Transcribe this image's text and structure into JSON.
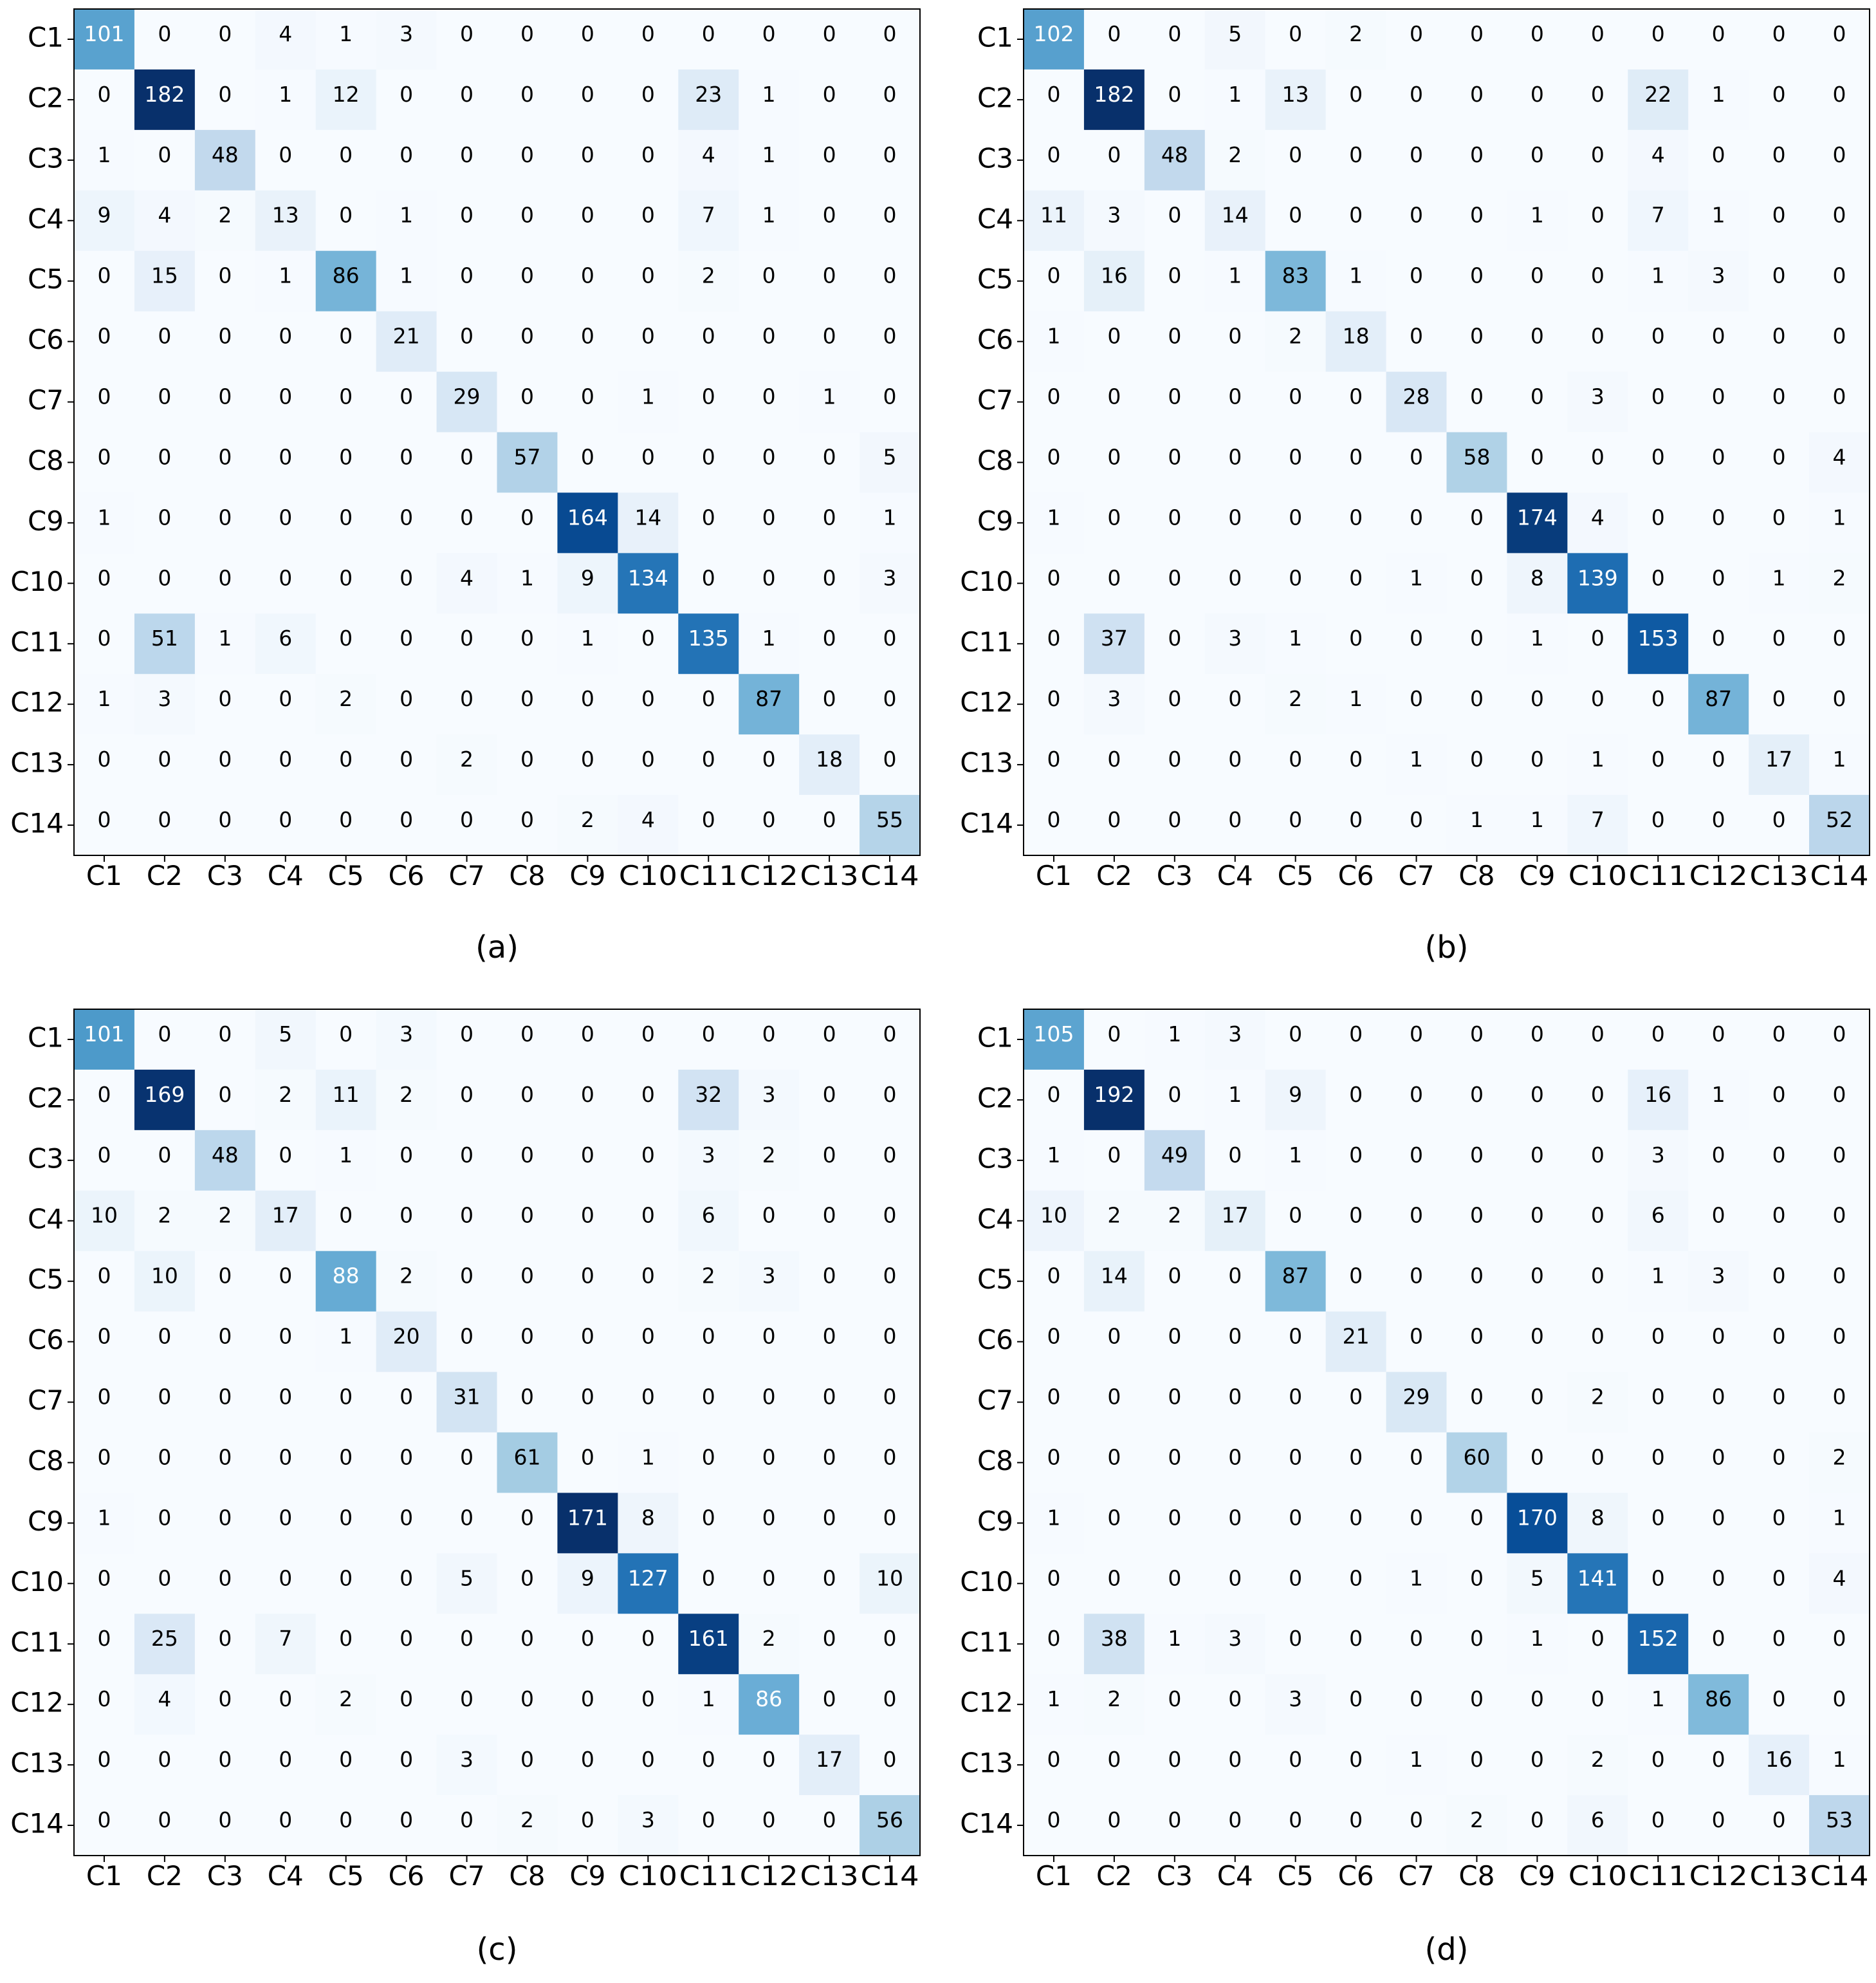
{
  "chart_data": [
    {
      "type": "heatmap",
      "panel_label": "(a)",
      "colormap": "Blues",
      "categories": [
        "C1",
        "C2",
        "C3",
        "C4",
        "C5",
        "C6",
        "C7",
        "C8",
        "C9",
        "C10",
        "C11",
        "C12",
        "C13",
        "C14"
      ],
      "matrix": [
        [
          101,
          0,
          0,
          4,
          1,
          3,
          0,
          0,
          0,
          0,
          0,
          0,
          0,
          0
        ],
        [
          0,
          182,
          0,
          1,
          12,
          0,
          0,
          0,
          0,
          0,
          23,
          1,
          0,
          0
        ],
        [
          1,
          0,
          48,
          0,
          0,
          0,
          0,
          0,
          0,
          0,
          4,
          1,
          0,
          0
        ],
        [
          9,
          4,
          2,
          13,
          0,
          1,
          0,
          0,
          0,
          0,
          7,
          1,
          0,
          0
        ],
        [
          0,
          15,
          0,
          1,
          86,
          1,
          0,
          0,
          0,
          0,
          2,
          0,
          0,
          0
        ],
        [
          0,
          0,
          0,
          0,
          0,
          21,
          0,
          0,
          0,
          0,
          0,
          0,
          0,
          0
        ],
        [
          0,
          0,
          0,
          0,
          0,
          0,
          29,
          0,
          0,
          1,
          0,
          0,
          1,
          0
        ],
        [
          0,
          0,
          0,
          0,
          0,
          0,
          0,
          57,
          0,
          0,
          0,
          0,
          0,
          5
        ],
        [
          1,
          0,
          0,
          0,
          0,
          0,
          0,
          0,
          164,
          14,
          0,
          0,
          0,
          1
        ],
        [
          0,
          0,
          0,
          0,
          0,
          0,
          4,
          1,
          9,
          134,
          0,
          0,
          0,
          3
        ],
        [
          0,
          51,
          1,
          6,
          0,
          0,
          0,
          0,
          1,
          0,
          135,
          1,
          0,
          0
        ],
        [
          1,
          3,
          0,
          0,
          2,
          0,
          0,
          0,
          0,
          0,
          0,
          87,
          0,
          0
        ],
        [
          0,
          0,
          0,
          0,
          0,
          0,
          2,
          0,
          0,
          0,
          0,
          0,
          18,
          0
        ],
        [
          0,
          0,
          0,
          0,
          0,
          0,
          0,
          0,
          2,
          4,
          0,
          0,
          0,
          55
        ]
      ]
    },
    {
      "type": "heatmap",
      "panel_label": "(b)",
      "colormap": "Blues",
      "categories": [
        "C1",
        "C2",
        "C3",
        "C4",
        "C5",
        "C6",
        "C7",
        "C8",
        "C9",
        "C10",
        "C11",
        "C12",
        "C13",
        "C14"
      ],
      "matrix": [
        [
          102,
          0,
          0,
          5,
          0,
          2,
          0,
          0,
          0,
          0,
          0,
          0,
          0,
          0
        ],
        [
          0,
          182,
          0,
          1,
          13,
          0,
          0,
          0,
          0,
          0,
          22,
          1,
          0,
          0
        ],
        [
          0,
          0,
          48,
          2,
          0,
          0,
          0,
          0,
          0,
          0,
          4,
          0,
          0,
          0
        ],
        [
          11,
          3,
          0,
          14,
          0,
          0,
          0,
          0,
          1,
          0,
          7,
          1,
          0,
          0
        ],
        [
          0,
          16,
          0,
          1,
          83,
          1,
          0,
          0,
          0,
          0,
          1,
          3,
          0,
          0
        ],
        [
          1,
          0,
          0,
          0,
          2,
          18,
          0,
          0,
          0,
          0,
          0,
          0,
          0,
          0
        ],
        [
          0,
          0,
          0,
          0,
          0,
          0,
          28,
          0,
          0,
          3,
          0,
          0,
          0,
          0
        ],
        [
          0,
          0,
          0,
          0,
          0,
          0,
          0,
          58,
          0,
          0,
          0,
          0,
          0,
          4
        ],
        [
          1,
          0,
          0,
          0,
          0,
          0,
          0,
          0,
          174,
          4,
          0,
          0,
          0,
          1
        ],
        [
          0,
          0,
          0,
          0,
          0,
          0,
          1,
          0,
          8,
          139,
          0,
          0,
          1,
          2
        ],
        [
          0,
          37,
          0,
          3,
          1,
          0,
          0,
          0,
          1,
          0,
          153,
          0,
          0,
          0
        ],
        [
          0,
          3,
          0,
          0,
          2,
          1,
          0,
          0,
          0,
          0,
          0,
          87,
          0,
          0
        ],
        [
          0,
          0,
          0,
          0,
          0,
          0,
          1,
          0,
          0,
          1,
          0,
          0,
          17,
          1
        ],
        [
          0,
          0,
          0,
          0,
          0,
          0,
          0,
          1,
          1,
          7,
          0,
          0,
          0,
          52
        ]
      ]
    },
    {
      "type": "heatmap",
      "panel_label": "(c)",
      "colormap": "Blues",
      "categories": [
        "C1",
        "C2",
        "C3",
        "C4",
        "C5",
        "C6",
        "C7",
        "C8",
        "C9",
        "C10",
        "C11",
        "C12",
        "C13",
        "C14"
      ],
      "matrix": [
        [
          101,
          0,
          0,
          5,
          0,
          3,
          0,
          0,
          0,
          0,
          0,
          0,
          0,
          0
        ],
        [
          0,
          169,
          0,
          2,
          11,
          2,
          0,
          0,
          0,
          0,
          32,
          3,
          0,
          0
        ],
        [
          0,
          0,
          48,
          0,
          1,
          0,
          0,
          0,
          0,
          0,
          3,
          2,
          0,
          0
        ],
        [
          10,
          2,
          2,
          17,
          0,
          0,
          0,
          0,
          0,
          0,
          6,
          0,
          0,
          0
        ],
        [
          0,
          10,
          0,
          0,
          88,
          2,
          0,
          0,
          0,
          0,
          2,
          3,
          0,
          0
        ],
        [
          0,
          0,
          0,
          0,
          1,
          20,
          0,
          0,
          0,
          0,
          0,
          0,
          0,
          0
        ],
        [
          0,
          0,
          0,
          0,
          0,
          0,
          31,
          0,
          0,
          0,
          0,
          0,
          0,
          0
        ],
        [
          0,
          0,
          0,
          0,
          0,
          0,
          0,
          61,
          0,
          1,
          0,
          0,
          0,
          0
        ],
        [
          1,
          0,
          0,
          0,
          0,
          0,
          0,
          0,
          171,
          8,
          0,
          0,
          0,
          0
        ],
        [
          0,
          0,
          0,
          0,
          0,
          0,
          5,
          0,
          9,
          127,
          0,
          0,
          0,
          10
        ],
        [
          0,
          25,
          0,
          7,
          0,
          0,
          0,
          0,
          0,
          0,
          161,
          2,
          0,
          0
        ],
        [
          0,
          4,
          0,
          0,
          2,
          0,
          0,
          0,
          0,
          0,
          1,
          86,
          0,
          0
        ],
        [
          0,
          0,
          0,
          0,
          0,
          0,
          3,
          0,
          0,
          0,
          0,
          0,
          17,
          0
        ],
        [
          0,
          0,
          0,
          0,
          0,
          0,
          0,
          2,
          0,
          3,
          0,
          0,
          0,
          56
        ]
      ]
    },
    {
      "type": "heatmap",
      "panel_label": "(d)",
      "colormap": "Blues",
      "categories": [
        "C1",
        "C2",
        "C3",
        "C4",
        "C5",
        "C6",
        "C7",
        "C8",
        "C9",
        "C10",
        "C11",
        "C12",
        "C13",
        "C14"
      ],
      "matrix": [
        [
          105,
          0,
          1,
          3,
          0,
          0,
          0,
          0,
          0,
          0,
          0,
          0,
          0,
          0
        ],
        [
          0,
          192,
          0,
          1,
          9,
          0,
          0,
          0,
          0,
          0,
          16,
          1,
          0,
          0
        ],
        [
          1,
          0,
          49,
          0,
          1,
          0,
          0,
          0,
          0,
          0,
          3,
          0,
          0,
          0
        ],
        [
          10,
          2,
          2,
          17,
          0,
          0,
          0,
          0,
          0,
          0,
          6,
          0,
          0,
          0
        ],
        [
          0,
          14,
          0,
          0,
          87,
          0,
          0,
          0,
          0,
          0,
          1,
          3,
          0,
          0
        ],
        [
          0,
          0,
          0,
          0,
          0,
          21,
          0,
          0,
          0,
          0,
          0,
          0,
          0,
          0
        ],
        [
          0,
          0,
          0,
          0,
          0,
          0,
          29,
          0,
          0,
          2,
          0,
          0,
          0,
          0
        ],
        [
          0,
          0,
          0,
          0,
          0,
          0,
          0,
          60,
          0,
          0,
          0,
          0,
          0,
          2
        ],
        [
          1,
          0,
          0,
          0,
          0,
          0,
          0,
          0,
          170,
          8,
          0,
          0,
          0,
          1
        ],
        [
          0,
          0,
          0,
          0,
          0,
          0,
          1,
          0,
          5,
          141,
          0,
          0,
          0,
          4
        ],
        [
          0,
          38,
          1,
          3,
          0,
          0,
          0,
          0,
          1,
          0,
          152,
          0,
          0,
          0
        ],
        [
          1,
          2,
          0,
          0,
          3,
          0,
          0,
          0,
          0,
          0,
          1,
          86,
          0,
          0
        ],
        [
          0,
          0,
          0,
          0,
          0,
          0,
          1,
          0,
          0,
          2,
          0,
          0,
          16,
          1
        ],
        [
          0,
          0,
          0,
          0,
          0,
          0,
          0,
          2,
          0,
          6,
          0,
          0,
          0,
          53
        ]
      ]
    }
  ]
}
